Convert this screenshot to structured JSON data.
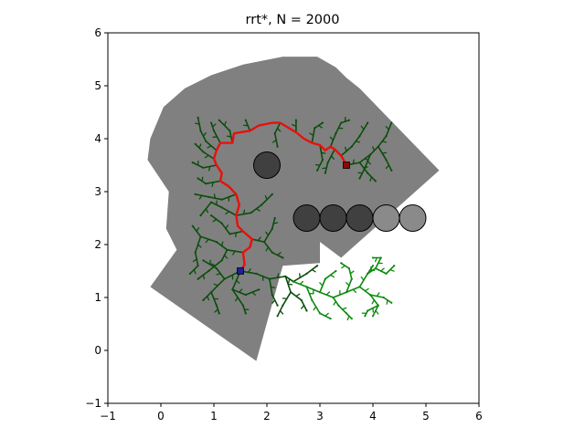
{
  "chart_data": {
    "type": "scatter",
    "title": "rrt*, N = 2000",
    "xlabel": "",
    "ylabel": "",
    "xlim": [
      -1,
      6
    ],
    "ylim": [
      -1,
      6
    ],
    "xticks": [
      -1,
      0,
      1,
      2,
      3,
      4,
      5,
      6
    ],
    "yticks": [
      -1,
      0,
      1,
      2,
      3,
      4,
      5,
      6
    ],
    "grid": false,
    "legend": "none",
    "colors": {
      "region": "#808080",
      "tree_dark": "#0b4d0b",
      "tree_light": "#0a8a0a",
      "path": "#e8100b",
      "obstacle_dark": "#404040",
      "obstacle_light": "#8a8a8a",
      "start": "#1f1f9a",
      "goal": "#8b0a0a"
    },
    "region_polygon": [
      [
        -0.2,
        1.2
      ],
      [
        0.3,
        1.9
      ],
      [
        0.1,
        2.3
      ],
      [
        0.15,
        3.0
      ],
      [
        -0.25,
        3.6
      ],
      [
        -0.2,
        4.0
      ],
      [
        0.05,
        4.6
      ],
      [
        0.45,
        4.95
      ],
      [
        0.95,
        5.2
      ],
      [
        1.55,
        5.4
      ],
      [
        2.3,
        5.55
      ],
      [
        2.95,
        5.55
      ],
      [
        3.3,
        5.35
      ],
      [
        3.5,
        5.15
      ],
      [
        3.75,
        4.95
      ],
      [
        5.25,
        3.4
      ],
      [
        3.4,
        1.75
      ],
      [
        3.0,
        2.05
      ],
      [
        3.0,
        1.65
      ],
      [
        2.3,
        1.6
      ],
      [
        1.8,
        -0.2
      ]
    ],
    "obstacles": [
      {
        "x": 2.0,
        "y": 3.5,
        "r": 0.25,
        "shade": "dark"
      },
      {
        "x": 2.75,
        "y": 2.5,
        "r": 0.25,
        "shade": "dark"
      },
      {
        "x": 3.25,
        "y": 2.5,
        "r": 0.25,
        "shade": "dark"
      },
      {
        "x": 3.75,
        "y": 2.5,
        "r": 0.25,
        "shade": "dark"
      },
      {
        "x": 4.25,
        "y": 2.5,
        "r": 0.25,
        "shade": "light"
      },
      {
        "x": 4.75,
        "y": 2.5,
        "r": 0.25,
        "shade": "light"
      }
    ],
    "start": {
      "x": 1.5,
      "y": 1.5
    },
    "goal": {
      "x": 3.5,
      "y": 3.5
    },
    "path": [
      [
        1.5,
        1.5
      ],
      [
        1.58,
        1.62
      ],
      [
        1.55,
        1.85
      ],
      [
        1.68,
        1.95
      ],
      [
        1.72,
        2.1
      ],
      [
        1.55,
        2.25
      ],
      [
        1.45,
        2.35
      ],
      [
        1.42,
        2.55
      ],
      [
        1.48,
        2.75
      ],
      [
        1.42,
        2.95
      ],
      [
        1.28,
        3.1
      ],
      [
        1.12,
        3.2
      ],
      [
        1.15,
        3.35
      ],
      [
        1.05,
        3.5
      ],
      [
        1.0,
        3.62
      ],
      [
        1.05,
        3.78
      ],
      [
        1.12,
        3.92
      ],
      [
        1.35,
        3.92
      ],
      [
        1.38,
        4.1
      ],
      [
        1.68,
        4.15
      ],
      [
        1.85,
        4.25
      ],
      [
        2.1,
        4.3
      ],
      [
        2.25,
        4.3
      ],
      [
        2.55,
        4.12
      ],
      [
        2.7,
        4.0
      ],
      [
        2.85,
        3.92
      ],
      [
        3.0,
        3.88
      ],
      [
        3.1,
        3.78
      ],
      [
        3.2,
        3.85
      ],
      [
        3.28,
        3.8
      ],
      [
        3.4,
        3.68
      ],
      [
        3.5,
        3.5
      ]
    ],
    "tree_dark_branches": [
      [
        [
          1.5,
          1.5
        ],
        [
          1.2,
          1.35
        ],
        [
          0.95,
          1.1
        ],
        [
          0.8,
          0.95
        ]
      ],
      [
        [
          1.2,
          1.35
        ],
        [
          1.05,
          1.55
        ],
        [
          0.8,
          1.7
        ]
      ],
      [
        [
          0.95,
          1.1
        ],
        [
          1.05,
          0.85
        ],
        [
          1.1,
          0.7
        ]
      ],
      [
        [
          1.5,
          1.5
        ],
        [
          1.35,
          1.15
        ],
        [
          1.55,
          0.85
        ],
        [
          1.6,
          0.7
        ]
      ],
      [
        [
          1.35,
          1.15
        ],
        [
          1.6,
          1.05
        ],
        [
          1.85,
          1.15
        ]
      ],
      [
        [
          1.5,
          1.5
        ],
        [
          1.8,
          1.45
        ],
        [
          2.05,
          1.35
        ],
        [
          2.35,
          1.4
        ],
        [
          2.5,
          1.3
        ]
      ],
      [
        [
          2.05,
          1.35
        ],
        [
          2.1,
          1.05
        ],
        [
          2.2,
          0.85
        ]
      ],
      [
        [
          2.35,
          1.4
        ],
        [
          2.45,
          1.1
        ],
        [
          2.3,
          0.85
        ],
        [
          2.2,
          0.65
        ]
      ],
      [
        [
          2.45,
          1.1
        ],
        [
          2.65,
          0.95
        ],
        [
          2.75,
          0.75
        ]
      ],
      [
        [
          2.5,
          1.3
        ],
        [
          2.75,
          1.45
        ],
        [
          2.95,
          1.6
        ]
      ],
      [
        [
          1.55,
          1.85
        ],
        [
          1.25,
          1.9
        ],
        [
          1.05,
          2.05
        ],
        [
          0.75,
          2.15
        ],
        [
          0.6,
          2.35
        ]
      ],
      [
        [
          1.25,
          1.9
        ],
        [
          1.15,
          1.7
        ],
        [
          0.9,
          1.5
        ],
        [
          0.7,
          1.35
        ]
      ],
      [
        [
          0.75,
          2.15
        ],
        [
          0.65,
          1.85
        ],
        [
          0.7,
          1.6
        ],
        [
          0.55,
          1.45
        ]
      ],
      [
        [
          1.72,
          2.1
        ],
        [
          1.95,
          2.05
        ],
        [
          2.1,
          1.85
        ],
        [
          2.3,
          1.75
        ]
      ],
      [
        [
          1.95,
          2.05
        ],
        [
          2.1,
          2.3
        ],
        [
          2.15,
          2.5
        ]
      ],
      [
        [
          1.55,
          2.25
        ],
        [
          1.3,
          2.2
        ],
        [
          1.15,
          2.4
        ],
        [
          0.95,
          2.55
        ]
      ],
      [
        [
          1.42,
          2.55
        ],
        [
          1.7,
          2.6
        ],
        [
          1.9,
          2.75
        ],
        [
          2.1,
          2.95
        ]
      ],
      [
        [
          1.42,
          2.55
        ],
        [
          1.15,
          2.7
        ],
        [
          0.95,
          2.8
        ],
        [
          0.75,
          2.55
        ]
      ],
      [
        [
          1.42,
          2.95
        ],
        [
          1.15,
          2.85
        ],
        [
          0.9,
          2.9
        ],
        [
          0.65,
          2.95
        ]
      ],
      [
        [
          1.12,
          3.2
        ],
        [
          0.85,
          3.15
        ],
        [
          0.7,
          3.25
        ]
      ],
      [
        [
          1.05,
          3.5
        ],
        [
          0.8,
          3.45
        ],
        [
          0.6,
          3.55
        ]
      ],
      [
        [
          1.0,
          3.62
        ],
        [
          0.8,
          3.75
        ],
        [
          0.65,
          3.9
        ]
      ],
      [
        [
          1.05,
          3.78
        ],
        [
          0.85,
          3.95
        ],
        [
          0.75,
          4.15
        ],
        [
          0.7,
          4.4
        ]
      ],
      [
        [
          1.12,
          3.92
        ],
        [
          1.0,
          4.15
        ],
        [
          0.95,
          4.3
        ]
      ],
      [
        [
          1.35,
          3.92
        ],
        [
          1.3,
          4.15
        ],
        [
          1.1,
          4.35
        ]
      ],
      [
        [
          1.68,
          4.15
        ],
        [
          1.6,
          4.35
        ]
      ],
      [
        [
          2.25,
          4.3
        ],
        [
          2.15,
          4.1
        ],
        [
          2.2,
          3.85
        ]
      ],
      [
        [
          2.55,
          4.12
        ],
        [
          2.55,
          4.35
        ]
      ],
      [
        [
          2.85,
          3.92
        ],
        [
          2.9,
          4.2
        ],
        [
          3.05,
          4.3
        ]
      ],
      [
        [
          3.0,
          3.88
        ],
        [
          3.05,
          3.6
        ],
        [
          2.95,
          3.4
        ]
      ],
      [
        [
          3.2,
          3.85
        ],
        [
          3.3,
          4.1
        ],
        [
          3.4,
          4.3
        ],
        [
          3.55,
          4.35
        ]
      ],
      [
        [
          3.28,
          3.8
        ],
        [
          3.15,
          3.55
        ],
        [
          3.1,
          3.35
        ]
      ],
      [
        [
          3.4,
          3.68
        ],
        [
          3.6,
          3.85
        ],
        [
          3.75,
          4.05
        ],
        [
          3.9,
          4.3
        ]
      ],
      [
        [
          3.5,
          3.5
        ],
        [
          3.75,
          3.55
        ],
        [
          3.95,
          3.7
        ],
        [
          4.1,
          3.85
        ],
        [
          4.25,
          4.05
        ],
        [
          4.35,
          4.3
        ]
      ],
      [
        [
          3.75,
          3.55
        ],
        [
          3.9,
          3.35
        ],
        [
          4.05,
          3.2
        ]
      ],
      [
        [
          4.1,
          3.85
        ],
        [
          4.25,
          3.6
        ],
        [
          4.35,
          3.4
        ]
      ],
      [
        [
          3.95,
          3.7
        ],
        [
          3.85,
          3.45
        ],
        [
          3.75,
          3.25
        ]
      ]
    ],
    "tree_light_branches": [
      [
        [
          2.5,
          1.3
        ],
        [
          2.75,
          1.2
        ],
        [
          3.0,
          1.1
        ],
        [
          3.25,
          1.0
        ],
        [
          3.35,
          0.85
        ]
      ],
      [
        [
          3.0,
          1.1
        ],
        [
          3.1,
          1.35
        ],
        [
          3.3,
          1.5
        ]
      ],
      [
        [
          2.75,
          1.2
        ],
        [
          2.85,
          0.95
        ],
        [
          3.0,
          0.7
        ],
        [
          3.2,
          0.6
        ]
      ],
      [
        [
          3.25,
          1.0
        ],
        [
          3.5,
          1.1
        ],
        [
          3.75,
          1.2
        ],
        [
          3.95,
          1.05
        ],
        [
          4.1,
          0.85
        ],
        [
          4.0,
          0.65
        ]
      ],
      [
        [
          3.75,
          1.2
        ],
        [
          3.9,
          1.45
        ],
        [
          4.0,
          1.6
        ]
      ],
      [
        [
          3.95,
          1.05
        ],
        [
          4.2,
          1.0
        ],
        [
          4.35,
          0.9
        ]
      ],
      [
        [
          3.5,
          1.1
        ],
        [
          3.6,
          1.35
        ],
        [
          3.55,
          1.55
        ],
        [
          3.4,
          1.65
        ]
      ],
      [
        [
          3.35,
          0.85
        ],
        [
          3.5,
          0.7
        ],
        [
          3.6,
          0.6
        ]
      ],
      [
        [
          3.9,
          1.45
        ],
        [
          4.05,
          1.55
        ],
        [
          4.15,
          1.75
        ],
        [
          4.0,
          1.75
        ]
      ],
      [
        [
          4.05,
          1.55
        ],
        [
          4.25,
          1.45
        ],
        [
          4.4,
          1.6
        ]
      ],
      [
        [
          4.1,
          0.85
        ],
        [
          3.9,
          0.75
        ],
        [
          3.85,
          0.65
        ]
      ]
    ]
  }
}
